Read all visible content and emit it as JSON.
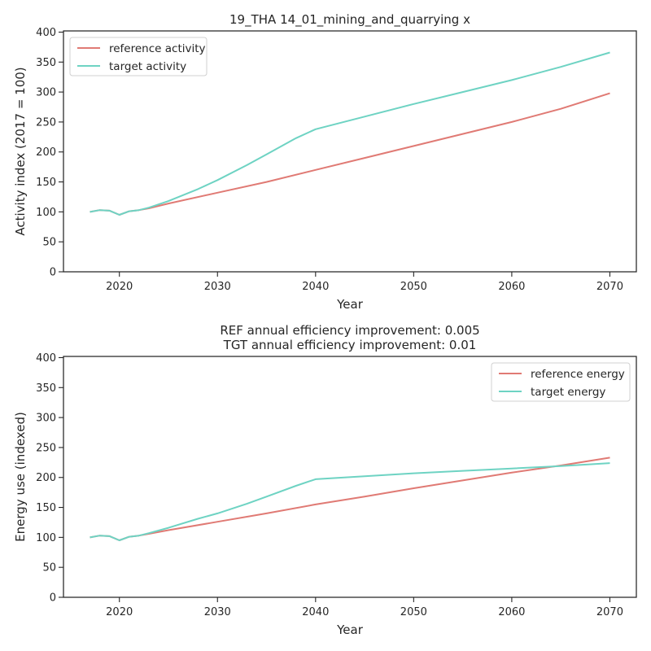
{
  "chart_data": [
    {
      "type": "line",
      "title": "19_THA 14_01_mining_and_quarrying x",
      "subtitle": "",
      "xlabel": "Year",
      "ylabel": "Activity index (2017 = 100)",
      "xlim": [
        2014.3,
        2072.7
      ],
      "ylim": [
        0,
        402
      ],
      "xticks": [
        2020,
        2030,
        2040,
        2050,
        2060,
        2070
      ],
      "yticks": [
        0,
        50,
        100,
        150,
        200,
        250,
        300,
        350,
        400
      ],
      "grid": false,
      "legend_position": "top-left",
      "series": [
        {
          "name": "reference activity",
          "color": "#E07A74",
          "x": [
            2017,
            2018,
            2019,
            2020,
            2021,
            2022,
            2023,
            2025,
            2030,
            2035,
            2040,
            2045,
            2050,
            2055,
            2060,
            2065,
            2070
          ],
          "y": [
            100,
            103,
            102,
            95,
            101,
            103,
            106,
            114,
            132,
            150,
            170,
            190,
            210,
            230,
            250,
            272,
            298
          ]
        },
        {
          "name": "target activity",
          "color": "#6ED3C3",
          "x": [
            2017,
            2018,
            2019,
            2020,
            2021,
            2022,
            2023,
            2025,
            2028,
            2030,
            2033,
            2035,
            2038,
            2040,
            2045,
            2050,
            2055,
            2060,
            2065,
            2070
          ],
          "y": [
            100,
            103,
            102,
            95,
            101,
            103,
            107,
            118,
            138,
            153,
            178,
            196,
            223,
            238,
            259,
            280,
            300,
            320,
            342,
            366
          ]
        }
      ]
    },
    {
      "type": "line",
      "title": "REF annual efficiency improvement: 0.005",
      "subtitle": "TGT annual efficiency improvement: 0.01",
      "xlabel": "Year",
      "ylabel": "Energy use (indexed)",
      "xlim": [
        2014.3,
        2072.7
      ],
      "ylim": [
        0,
        402
      ],
      "xticks": [
        2020,
        2030,
        2040,
        2050,
        2060,
        2070
      ],
      "yticks": [
        0,
        50,
        100,
        150,
        200,
        250,
        300,
        350,
        400
      ],
      "grid": false,
      "legend_position": "top-right",
      "series": [
        {
          "name": "reference energy",
          "color": "#E07A74",
          "x": [
            2017,
            2018,
            2019,
            2020,
            2021,
            2022,
            2023,
            2025,
            2030,
            2035,
            2040,
            2045,
            2050,
            2055,
            2060,
            2065,
            2070
          ],
          "y": [
            100,
            103,
            102,
            95,
            101,
            103,
            106,
            112,
            126,
            140,
            155,
            168,
            182,
            195,
            208,
            220,
            233
          ]
        },
        {
          "name": "target energy",
          "color": "#6ED3C3",
          "x": [
            2017,
            2018,
            2019,
            2020,
            2021,
            2022,
            2023,
            2025,
            2028,
            2030,
            2033,
            2035,
            2038,
            2040,
            2045,
            2050,
            2055,
            2060,
            2065,
            2070
          ],
          "y": [
            100,
            103,
            102,
            95,
            101,
            103,
            107,
            116,
            131,
            140,
            156,
            168,
            186,
            197,
            202,
            207,
            211,
            215,
            219,
            224
          ]
        }
      ]
    }
  ]
}
